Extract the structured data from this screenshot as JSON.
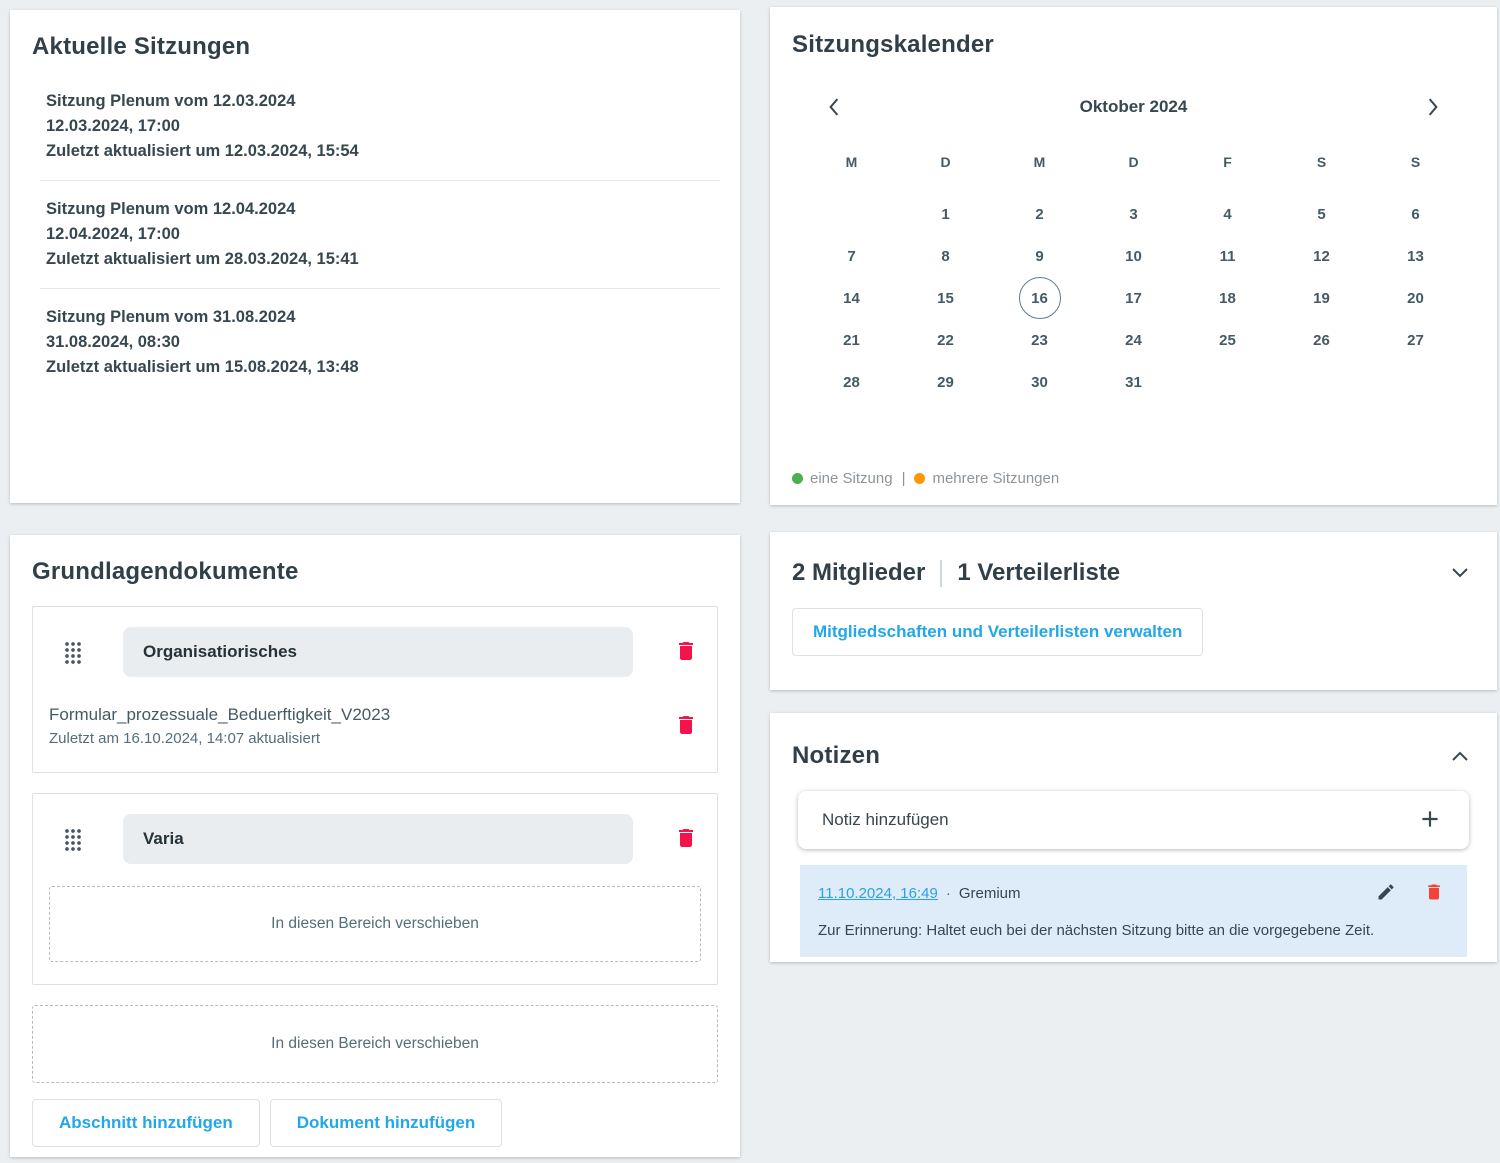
{
  "colors": {
    "accent_blue": "#22a7e8",
    "link_blue": "#2e9fe2",
    "trash_pink": "#f5134b",
    "trash_red": "#f44336",
    "legend_green": "#4caf50",
    "legend_orange": "#ff9800",
    "page_background": "#eceff1"
  },
  "sessions": {
    "title": "Aktuelle Sitzungen",
    "items": [
      {
        "title": "Sitzung Plenum vom 12.03.2024",
        "datetime": "12.03.2024, 17:00",
        "updated": "Zuletzt aktualisiert um 12.03.2024, 15:54"
      },
      {
        "title": "Sitzung Plenum vom 12.04.2024",
        "datetime": "12.04.2024, 17:00",
        "updated": "Zuletzt aktualisiert um 28.03.2024, 15:41"
      },
      {
        "title": "Sitzung Plenum vom 31.08.2024",
        "datetime": "31.08.2024, 08:30",
        "updated": "Zuletzt aktualisiert um 15.08.2024, 13:48"
      }
    ]
  },
  "calendar": {
    "title": "Sitzungskalender",
    "month_label": "Oktober 2024",
    "day_headers": [
      "M",
      "D",
      "M",
      "D",
      "F",
      "S",
      "S"
    ],
    "days": [
      "",
      "1",
      "2",
      "3",
      "4",
      "5",
      "6",
      "7",
      "8",
      "9",
      "10",
      "11",
      "12",
      "13",
      "14",
      "15",
      "16",
      "17",
      "18",
      "19",
      "20",
      "21",
      "22",
      "23",
      "24",
      "25",
      "26",
      "27",
      "28",
      "29",
      "30",
      "31",
      "",
      "",
      ""
    ],
    "selected_day": "16",
    "legend": {
      "one": "eine Sitzung",
      "sep": "|",
      "many": "mehrere Sitzungen"
    }
  },
  "documents": {
    "title": "Grundlagendokumente",
    "sections": [
      {
        "name": "Organisatiorisches"
      },
      {
        "name": "Varia"
      }
    ],
    "document": {
      "title": "Formular_prozessuale_Beduerftigkeit_V2023",
      "updated": "Zuletzt am 16.10.2024, 14:07 aktualisiert"
    },
    "dropzone_label": "In diesen Bereich verschieben",
    "add_section_label": "Abschnitt hinzufügen",
    "add_document_label": "Dokument hinzufügen"
  },
  "members": {
    "members_label": "2 Mitglieder",
    "lists_label": "1 Verteilerliste",
    "manage_label": "Mitgliedschaften und Verteilerlisten verwalten"
  },
  "notes": {
    "title": "Notizen",
    "add_placeholder": "Notiz hinzufügen",
    "note": {
      "timestamp": "11.10.2024, 16:49",
      "separator": "·",
      "source": "Gremium",
      "text": "Zur Erinnerung: Haltet euch bei der nächsten Sitzung bitte an die vorgegebene Zeit."
    }
  }
}
